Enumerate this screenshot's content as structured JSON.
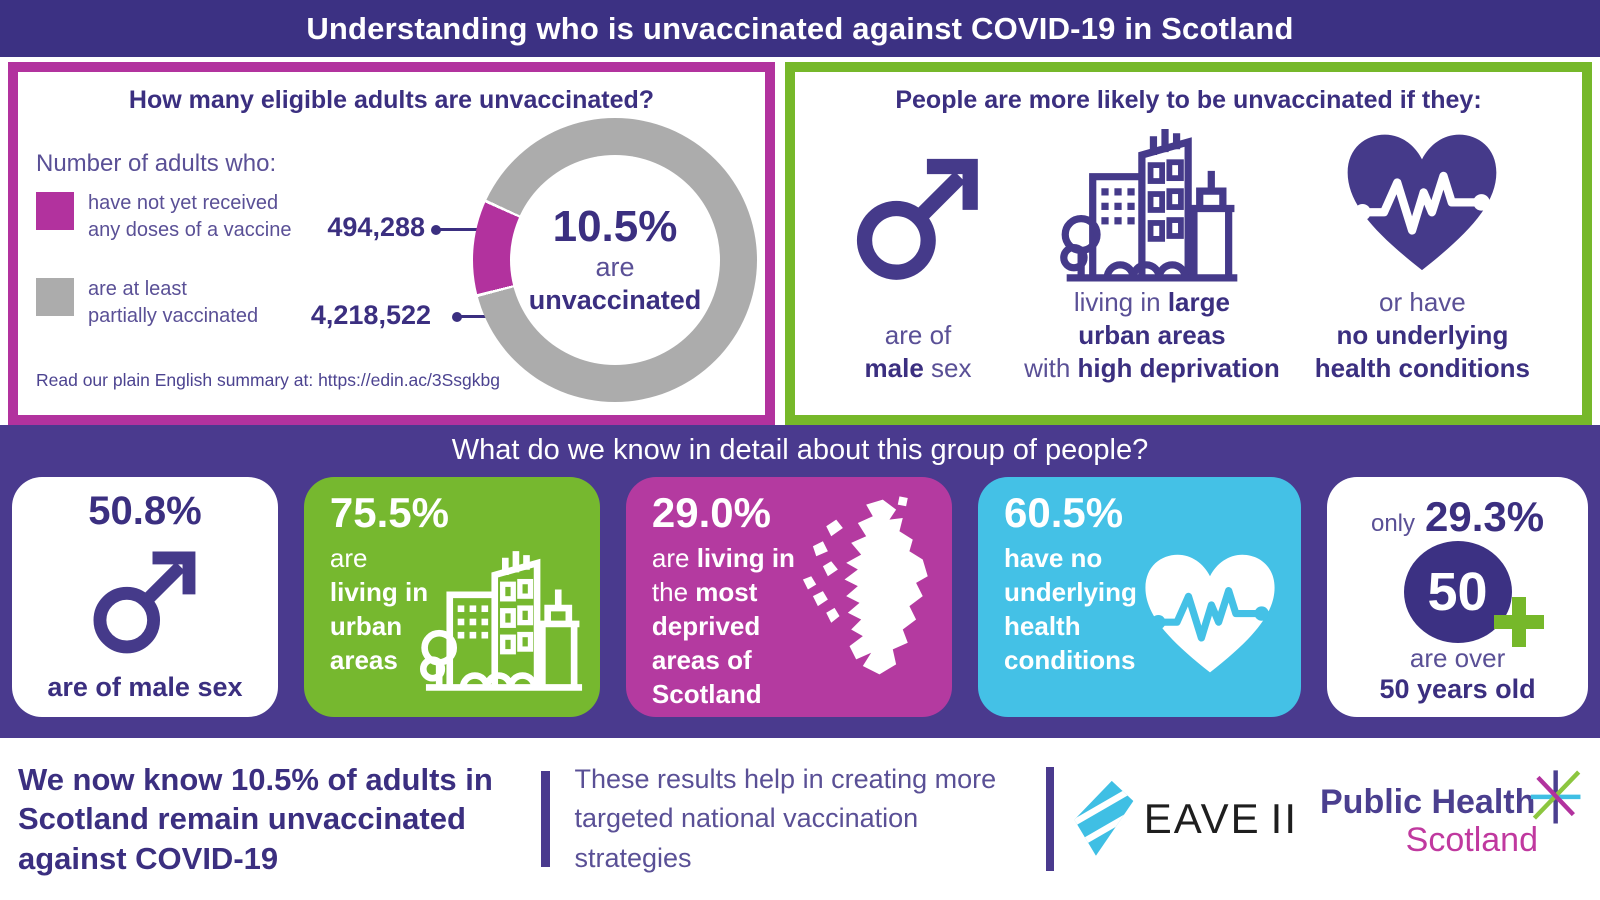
{
  "colors": {
    "banner_purple": "#3c3183",
    "band_purple": "#4a3a8e",
    "deep_purple": "#3b2f80",
    "mid_purple": "#5a5096",
    "magenta": "#b2329e",
    "card_magenta": "#b43aa0",
    "green": "#76b82a",
    "card_green": "#76b82f",
    "cyan": "#44c1e6",
    "gray": "#acacac",
    "icon_purple": "#453a8a",
    "phs_purple": "#4b3f8f",
    "phs_pink": "#c0399f",
    "eave_cyan": "#3fbfe4"
  },
  "header": {
    "title": "Understanding who is unvaccinated against COVID-19 in Scotland"
  },
  "left_panel": {
    "heading": "How many eligible adults are unvaccinated?",
    "legend_intro": "Number of adults who:",
    "legend": [
      {
        "line1": "have not yet received",
        "line2": "any doses of a vaccine",
        "value": "494,288"
      },
      {
        "line1": "are at least",
        "line2": "partially vaccinated",
        "value": "4,218,522"
      }
    ],
    "donut": {
      "pct": "10.5%",
      "sub": "are",
      "sub_bold": "unvaccinated"
    },
    "footnote_prefix": "Read our plain English summary at: ",
    "footnote_url": "https://edin.ac/3Ssgkbg"
  },
  "right_panel": {
    "heading": "People are more likely to be unvaccinated if they:",
    "items": [
      {
        "icon": "male-symbol",
        "caption_lines": [
          [
            {
              "t": "are of"
            }
          ],
          [
            {
              "t": "male",
              "b": true
            },
            {
              "t": " sex"
            }
          ]
        ]
      },
      {
        "icon": "city-buildings",
        "caption_lines": [
          [
            {
              "t": "living in "
            },
            {
              "t": "large",
              "b": true
            }
          ],
          [
            {
              "t": "urban areas",
              "b": true
            }
          ],
          [
            {
              "t": "with "
            },
            {
              "t": "high deprivation",
              "b": true
            }
          ]
        ]
      },
      {
        "icon": "heart-pulse",
        "caption_lines": [
          [
            {
              "t": "or have"
            }
          ],
          [
            {
              "t": "no underlying",
              "b": true
            }
          ],
          [
            {
              "t": "health conditions",
              "b": true
            }
          ]
        ]
      }
    ]
  },
  "band": {
    "heading": "What do we know in detail about this group of people?"
  },
  "cards": [
    {
      "icon": "male-symbol",
      "pct": "50.8%",
      "caption": "are of male sex"
    },
    {
      "icon": "city-buildings",
      "pct": "75.5%",
      "lines": [
        [
          {
            "t": "are"
          }
        ],
        [
          {
            "t": "living in",
            "b": true
          }
        ],
        [
          {
            "t": "urban",
            "b": true
          }
        ],
        [
          {
            "t": "areas",
            "b": true
          }
        ]
      ]
    },
    {
      "icon": "scotland-map",
      "pct": "29.0%",
      "lines": [
        [
          {
            "t": "are "
          },
          {
            "t": "living in",
            "b": true
          }
        ],
        [
          {
            "t": "the "
          },
          {
            "t": "most",
            "b": true
          }
        ],
        [
          {
            "t": "deprived",
            "b": true
          }
        ],
        [
          {
            "t": "areas of",
            "b": true
          }
        ],
        [
          {
            "t": "Scotland",
            "b": true
          }
        ]
      ]
    },
    {
      "icon": "heart-pulse",
      "pct": "60.5%",
      "lines": [
        [
          {
            "t": "have no",
            "b": true
          }
        ],
        [
          {
            "t": "underlying",
            "b": true
          }
        ],
        [
          {
            "t": "health",
            "b": true
          }
        ],
        [
          {
            "t": "conditions",
            "b": true
          }
        ]
      ]
    },
    {
      "icon": "fifty-plus",
      "prefix": "only",
      "pct": "29.3%",
      "badge": "50",
      "caption_line1": "are over",
      "caption_line2": "50 years old"
    }
  ],
  "footer": {
    "headline": "We now know 10.5% of adults in Scotland remain unvaccinated against COVID-19",
    "note": "These results help in creating more targeted national vaccination strategies",
    "eave_label": "EAVE",
    "eave_suffix": "II",
    "phs_name": "Public Health",
    "phs_region": "Scotland"
  },
  "chart_data": [
    {
      "type": "pie",
      "style": "donut",
      "title": "How many eligible adults are unvaccinated?",
      "labels": [
        "have not yet received any doses of a vaccine",
        "are at least partially vaccinated"
      ],
      "values": [
        494288,
        4218522
      ],
      "percentages": [
        10.5,
        89.5
      ],
      "colors": [
        "#b2329e",
        "#acacac"
      ],
      "center_label": "10.5% are unvaccinated",
      "legend_position": "left"
    },
    {
      "type": "table",
      "title": "What do we know in detail about this group of people?",
      "rows": [
        {
          "stat": "50.8%",
          "description": "are of male sex"
        },
        {
          "stat": "75.5%",
          "description": "are living in urban areas"
        },
        {
          "stat": "29.0%",
          "description": "are living in the most deprived areas of Scotland"
        },
        {
          "stat": "60.5%",
          "description": "have no underlying health conditions"
        },
        {
          "stat": "29.3%",
          "description": "only 29.3% are over 50 years old"
        }
      ]
    }
  ]
}
